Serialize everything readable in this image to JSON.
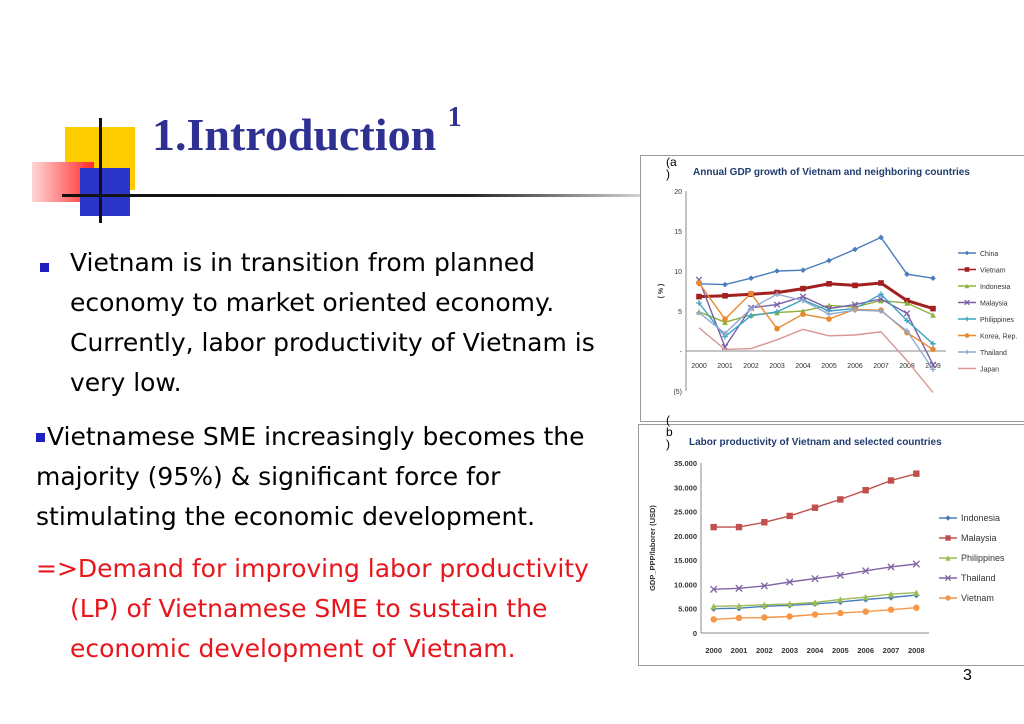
{
  "slide": {
    "title": "1.Introduction",
    "title_superscript": "1",
    "page_number": "3",
    "bullet1": "Vietnam is in transition from planned economy to market oriented economy. Currently, labor productivity of Vietnam is very low.",
    "bullet2": "Vietnamese SME increasingly becomes the majority (95%) & significant force for stimulating the economic development.",
    "conclusion": "=>Demand for improving labor productivity (LP) of Vietnamese SME to sustain the economic development of Vietnam.",
    "label_a": "(a)",
    "label_b": "(b)",
    "colors": {
      "title": "#2e3192",
      "bullet": "#1f1fbf",
      "conclusion": "#e8151c"
    }
  },
  "chart_data": [
    {
      "type": "line",
      "title": "Annual GDP growth of Vietnam and neighboring countries",
      "ylabel": "( % )",
      "x": [
        "2000",
        "2001",
        "2002",
        "2003",
        "2004",
        "2005",
        "2006",
        "2007",
        "2008",
        "2009"
      ],
      "y_ticks": [
        "20",
        "15",
        "10",
        "5",
        "-",
        "(5)"
      ],
      "ylim": [
        -5,
        20
      ],
      "legend_position": "right",
      "series": [
        {
          "name": "China",
          "color": "#4a7ebb",
          "marker": "diamond",
          "values": [
            8.4,
            8.3,
            9.1,
            10.0,
            10.1,
            11.3,
            12.7,
            14.2,
            9.6,
            9.1
          ]
        },
        {
          "name": "Vietnam",
          "color": "#a32020",
          "marker": "square",
          "values": [
            6.8,
            6.9,
            7.1,
            7.3,
            7.8,
            8.4,
            8.2,
            8.5,
            6.3,
            5.3
          ]
        },
        {
          "name": "Indonesia",
          "color": "#8fb23d",
          "marker": "triangle",
          "values": [
            4.9,
            3.6,
            4.5,
            4.8,
            5.0,
            5.7,
            5.5,
            6.3,
            6.0,
            4.5
          ]
        },
        {
          "name": "Malaysia",
          "color": "#7b5ea7",
          "marker": "x",
          "values": [
            8.9,
            0.5,
            5.4,
            5.8,
            6.8,
            5.3,
            5.8,
            6.5,
            4.7,
            -1.7
          ]
        },
        {
          "name": "Philippines",
          "color": "#3ca3c4",
          "marker": "star",
          "values": [
            6.0,
            1.8,
            4.4,
            4.9,
            6.4,
            5.0,
            5.3,
            7.1,
            3.8,
            0.9
          ]
        },
        {
          "name": "Korea, Rep.",
          "color": "#e8892f",
          "marker": "circle",
          "values": [
            8.5,
            4.0,
            7.2,
            2.8,
            4.6,
            4.0,
            5.2,
            5.1,
            2.3,
            0.2
          ]
        },
        {
          "name": "Thailand",
          "color": "#93a9cf",
          "marker": "plus",
          "values": [
            4.8,
            2.2,
            5.3,
            7.1,
            6.3,
            4.6,
            5.1,
            5.0,
            2.5,
            -2.3
          ]
        },
        {
          "name": "Japan",
          "color": "#d99694",
          "marker": "none",
          "values": [
            2.9,
            0.2,
            0.3,
            1.4,
            2.7,
            1.9,
            2.0,
            2.4,
            -1.2,
            -5.2
          ]
        }
      ]
    },
    {
      "type": "line",
      "title": "Labor productivity of Vietnam and selected countries",
      "ylabel": "GDP_PPP/laborer (USD)",
      "x": [
        "2000",
        "2001",
        "2002",
        "2003",
        "2004",
        "2005",
        "2006",
        "2007",
        "2008"
      ],
      "y_ticks": [
        "35.000",
        "30.000",
        "25.000",
        "20.000",
        "15.000",
        "10.000",
        "5.000",
        "0"
      ],
      "ylim": [
        0,
        35000
      ],
      "legend_position": "right",
      "series": [
        {
          "name": "Indonesia",
          "color": "#4a7ebb",
          "marker": "diamond",
          "values": [
            5000,
            5100,
            5500,
            5700,
            6000,
            6400,
            6900,
            7300,
            7800
          ]
        },
        {
          "name": "Malaysia",
          "color": "#c0504d",
          "marker": "square",
          "values": [
            21800,
            21800,
            22800,
            24100,
            25800,
            27500,
            29400,
            31400,
            32800
          ]
        },
        {
          "name": "Philippines",
          "color": "#9bbb59",
          "marker": "triangle",
          "values": [
            5500,
            5600,
            5800,
            6000,
            6300,
            6900,
            7400,
            8000,
            8300
          ]
        },
        {
          "name": "Thailand",
          "color": "#8064a2",
          "marker": "x",
          "values": [
            9000,
            9200,
            9700,
            10500,
            11200,
            11900,
            12800,
            13600,
            14200
          ]
        },
        {
          "name": "Vietnam",
          "color": "#f79646",
          "marker": "circle",
          "values": [
            2800,
            3100,
            3200,
            3400,
            3800,
            4100,
            4400,
            4800,
            5200
          ]
        }
      ]
    }
  ]
}
